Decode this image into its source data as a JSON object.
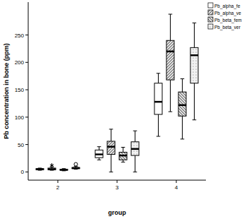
{
  "chart_data": {
    "type": "boxplot",
    "x_label": "group",
    "y_label": "Pb concentration in bone (ppm)",
    "categories": [
      "2",
      "3",
      "4"
    ],
    "ylim": [
      -15,
      310
    ],
    "yticks": [
      0,
      50,
      100,
      150,
      200,
      250
    ],
    "grid": false,
    "legend": "top-right",
    "series": [
      {
        "name": "Pb_alpha_fe",
        "color": "#ffffff",
        "values": [
          {
            "min": 3,
            "q1": 4,
            "median": 5,
            "q3": 6,
            "max": 7
          },
          {
            "min": 22,
            "q1": 26,
            "median": 32,
            "q3": 40,
            "max": 46
          },
          {
            "min": 65,
            "q1": 105,
            "median": 128,
            "q3": 162,
            "max": 180
          }
        ]
      },
      {
        "name": "Pb_alpha_ve",
        "color": "#dcdcdc",
        "values": [
          {
            "min": 3,
            "q1": 4,
            "median": 5,
            "q3": 7,
            "max": 9
          },
          {
            "min": 0,
            "q1": 32,
            "median": 46,
            "q3": 56,
            "max": 78
          },
          {
            "min": 110,
            "q1": 168,
            "median": 220,
            "q3": 240,
            "max": 288
          }
        ],
        "extremes": [
          [
            12
          ],
          [],
          []
        ]
      },
      {
        "name": "Pb_beta_fem",
        "color": "#dcdcdc",
        "values": [
          {
            "min": 2,
            "q1": 3,
            "median": 4,
            "q3": 5,
            "max": 6
          },
          {
            "min": 18,
            "q1": 22,
            "median": 30,
            "q3": 36,
            "max": 45
          },
          {
            "min": 60,
            "q1": 102,
            "median": 122,
            "q3": 146,
            "max": 170
          }
        ]
      },
      {
        "name": "Pb_beta_ver",
        "color": "#f2f2f2",
        "values": [
          {
            "min": 5,
            "q1": 6,
            "median": 7,
            "q3": 8,
            "max": 10
          },
          {
            "min": 0,
            "q1": 30,
            "median": 42,
            "q3": 55,
            "max": 75
          },
          {
            "min": 95,
            "q1": 162,
            "median": 213,
            "q3": 227,
            "max": 272
          }
        ],
        "outliers": [
          [
            14
          ],
          [],
          []
        ]
      }
    ]
  }
}
